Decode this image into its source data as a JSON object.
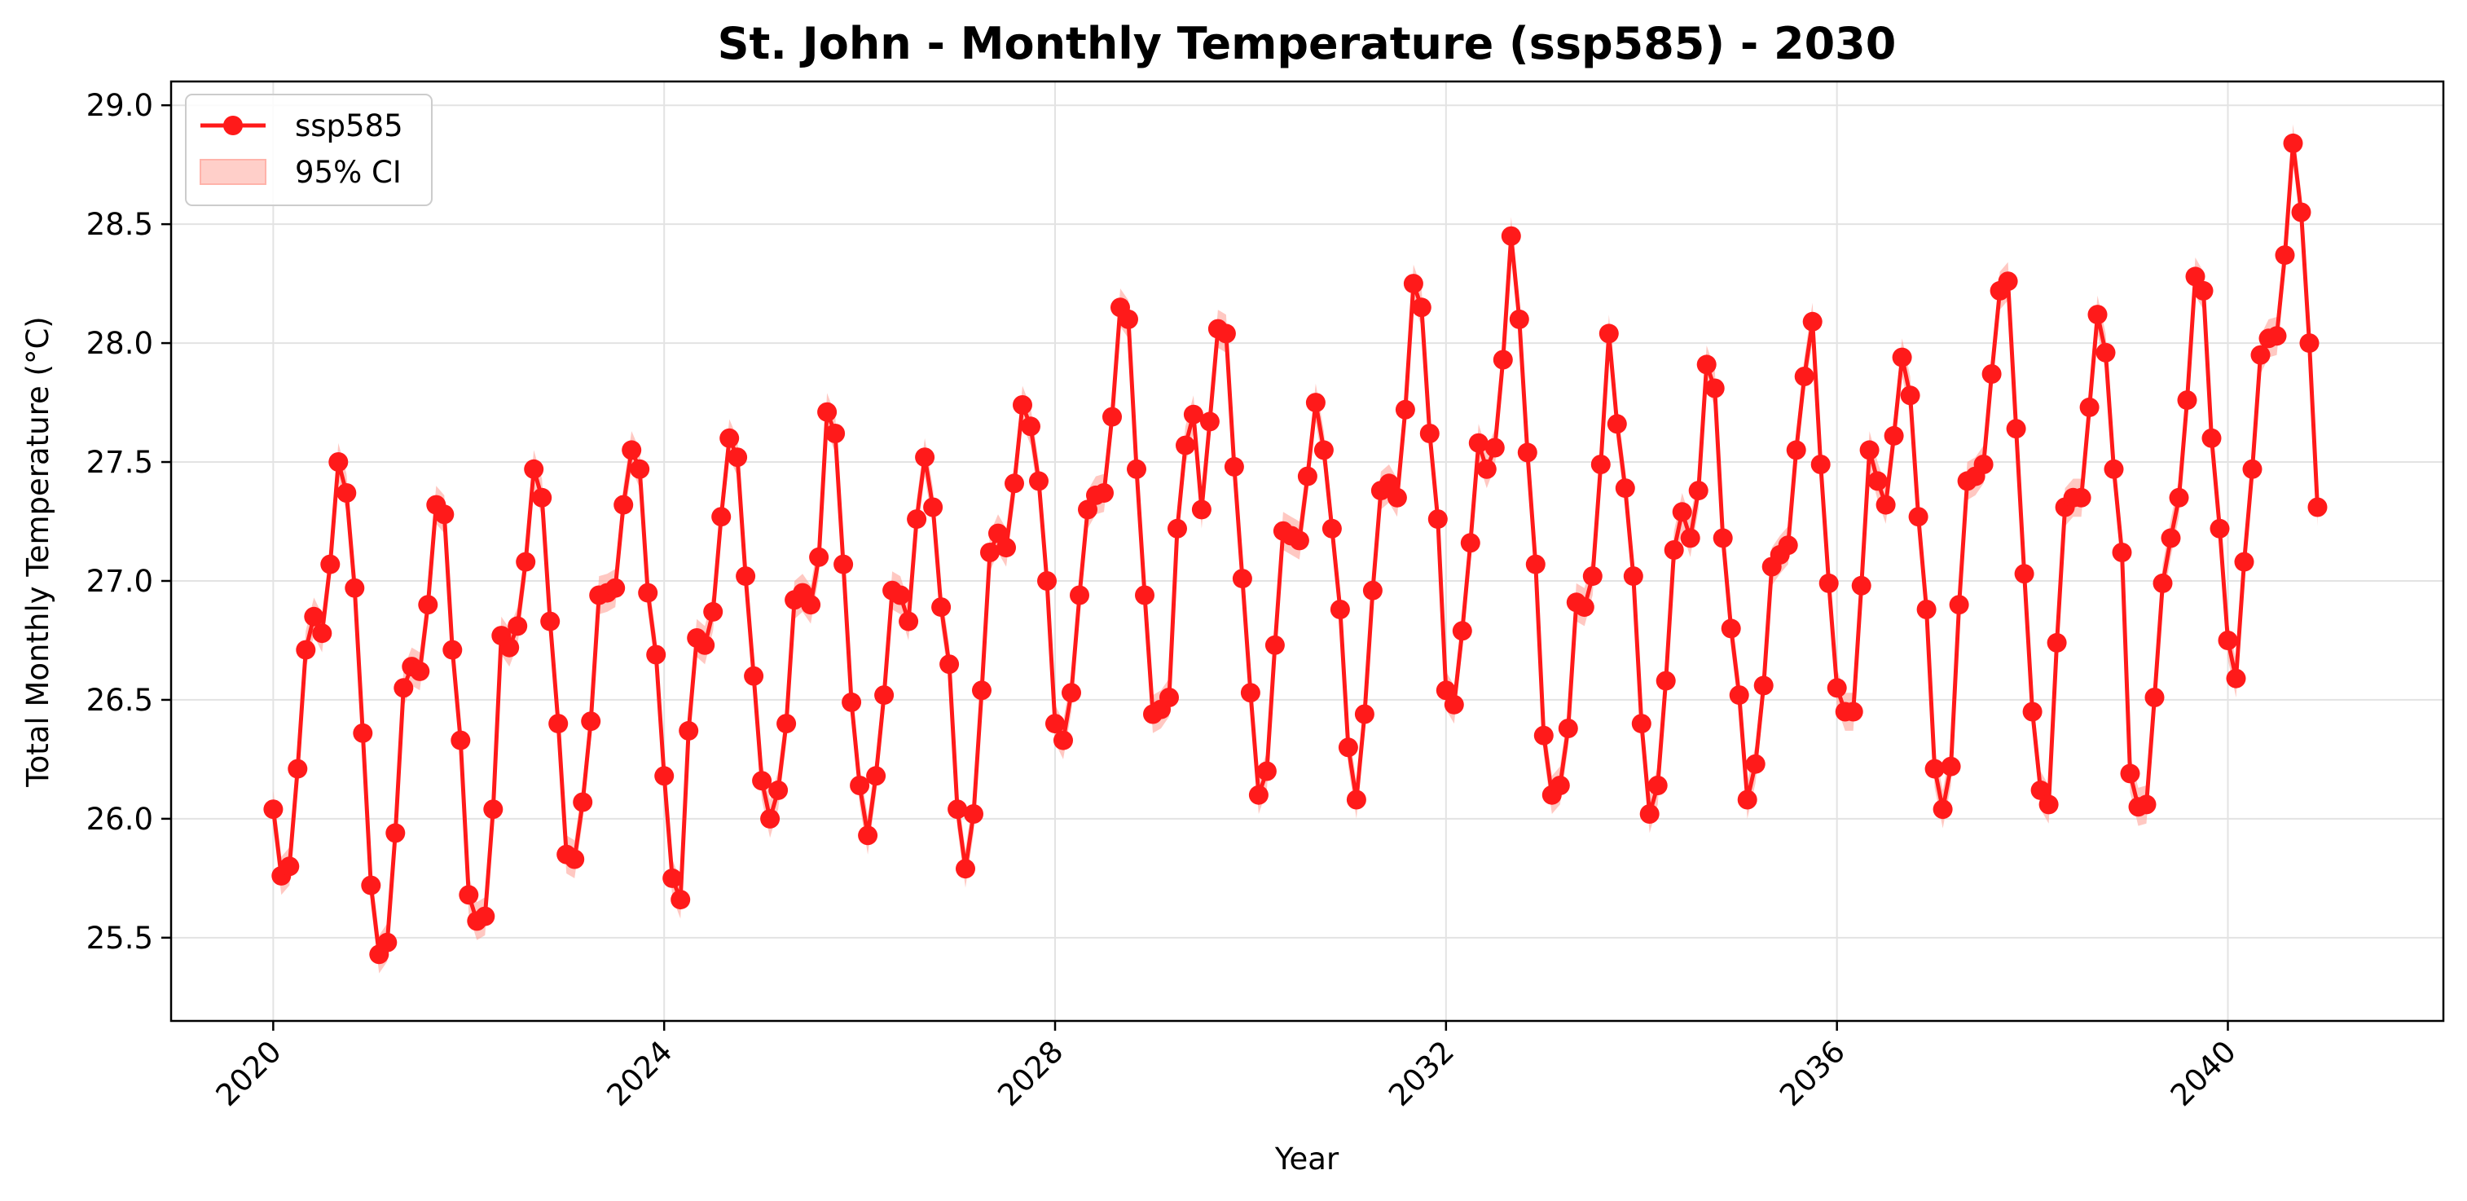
{
  "chart_data": {
    "type": "line",
    "title": "St. John - Monthly Temperature (ssp585) - 2030",
    "xlabel": "Year",
    "ylabel": "Total Monthly Temperature (°C)",
    "xlim": [
      "2018-12-15",
      "2042-03-15"
    ],
    "ylim": [
      25.15,
      29.1
    ],
    "x_ticks": [
      "2020",
      "2024",
      "2028",
      "2032",
      "2036",
      "2040"
    ],
    "y_ticks": [
      "25.5",
      "26.0",
      "26.5",
      "27.0",
      "27.5",
      "28.0",
      "28.5",
      "29.0"
    ],
    "grid": true,
    "legend_position": "top-left",
    "x_start": "2020-01",
    "x_step": "1 month",
    "series": [
      {
        "name": "ssp585",
        "color": "#ff1a1a",
        "values": [
          26.04,
          25.76,
          25.8,
          26.21,
          26.71,
          26.85,
          26.78,
          27.07,
          27.5,
          27.37,
          26.97,
          26.36,
          25.72,
          25.43,
          25.48,
          25.94,
          26.55,
          26.64,
          26.62,
          26.9,
          27.32,
          27.28,
          26.71,
          26.33,
          25.68,
          25.57,
          25.59,
          26.04,
          26.77,
          26.72,
          26.81,
          27.08,
          27.47,
          27.35,
          26.83,
          26.4,
          25.85,
          25.83,
          26.07,
          26.41,
          26.94,
          26.95,
          26.97,
          27.32,
          27.55,
          27.47,
          26.95,
          26.69,
          26.18,
          25.75,
          25.66,
          26.37,
          26.76,
          26.73,
          26.87,
          27.27,
          27.6,
          27.52,
          27.02,
          26.6,
          26.16,
          26.0,
          26.12,
          26.4,
          26.92,
          26.95,
          26.9,
          27.1,
          27.71,
          27.62,
          27.07,
          26.49,
          26.14,
          25.93,
          26.18,
          26.52,
          26.96,
          26.94,
          26.83,
          27.26,
          27.52,
          27.31,
          26.89,
          26.65,
          26.04,
          25.79,
          26.02,
          26.54,
          27.12,
          27.2,
          27.14,
          27.41,
          27.74,
          27.65,
          27.42,
          27.0,
          26.4,
          26.33,
          26.53,
          26.94,
          27.3,
          27.36,
          27.37,
          27.69,
          28.15,
          28.1,
          27.47,
          26.94,
          26.44,
          26.46,
          26.51,
          27.22,
          27.57,
          27.7,
          27.3,
          27.67,
          28.06,
          28.04,
          27.48,
          27.01,
          26.53,
          26.1,
          26.2,
          26.73,
          27.21,
          27.19,
          27.17,
          27.44,
          27.75,
          27.55,
          27.22,
          26.88,
          26.3,
          26.08,
          26.44,
          26.96,
          27.38,
          27.41,
          27.35,
          27.72,
          28.25,
          28.15,
          27.62,
          27.26,
          26.54,
          26.48,
          26.79,
          27.16,
          27.58,
          27.47,
          27.56,
          27.93,
          28.45,
          28.1,
          27.54,
          27.07,
          26.35,
          26.1,
          26.14,
          26.38,
          26.91,
          26.89,
          27.02,
          27.49,
          28.04,
          27.66,
          27.39,
          27.02,
          26.4,
          26.02,
          26.14,
          26.58,
          27.13,
          27.29,
          27.18,
          27.38,
          27.91,
          27.81,
          27.18,
          26.8,
          26.52,
          26.08,
          26.23,
          26.56,
          27.06,
          27.11,
          27.15,
          27.55,
          27.86,
          28.09,
          27.49,
          26.99,
          26.55,
          26.45,
          26.45,
          26.98,
          27.55,
          27.42,
          27.32,
          27.61,
          27.94,
          27.78,
          27.27,
          26.88,
          26.21,
          26.04,
          26.22,
          26.9,
          27.42,
          27.44,
          27.49,
          27.87,
          28.22,
          28.26,
          27.64,
          27.03,
          26.45,
          26.12,
          26.06,
          26.74,
          27.31,
          27.35,
          27.35,
          27.73,
          28.12,
          27.96,
          27.47,
          27.12,
          26.19,
          26.05,
          26.06,
          26.51,
          26.99,
          27.18,
          27.35,
          27.76,
          28.28,
          28.22,
          27.6,
          27.22,
          26.75,
          26.59,
          27.08,
          27.47,
          27.95,
          28.02,
          28.03,
          28.37,
          28.84,
          28.55,
          28.0,
          27.31
        ]
      }
    ],
    "ci_band": {
      "name": "95% CI",
      "color": "#ff9a8f",
      "half_width": 0.08
    }
  }
}
